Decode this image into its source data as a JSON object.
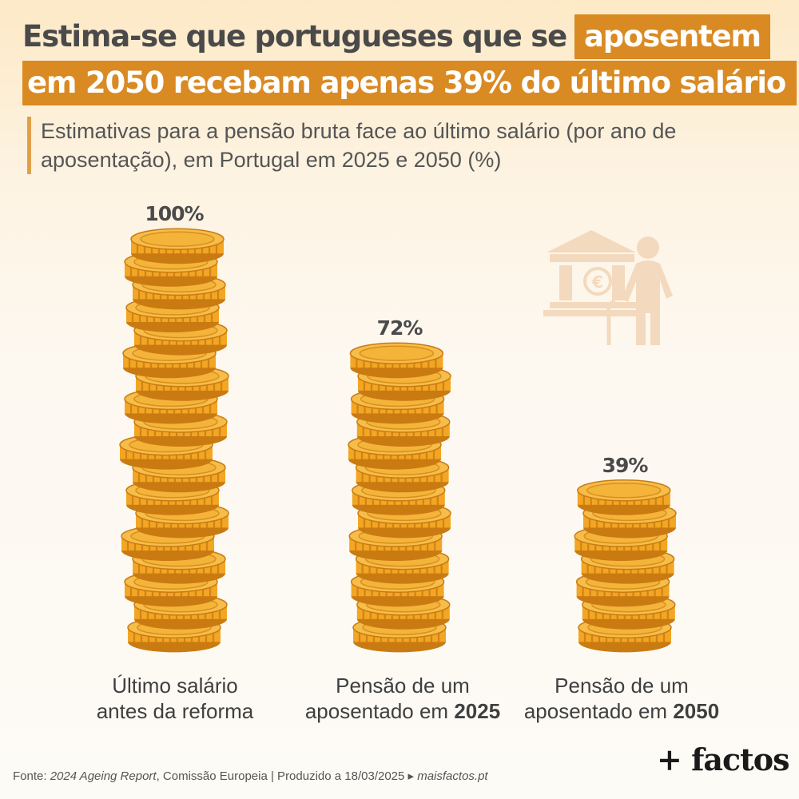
{
  "title": {
    "part1": "Estima-se que portugueses que se",
    "highlight1": "aposentem",
    "part2": "em 2050 recebam apenas 39% do último salário"
  },
  "subtitle": "Estimativas para a pensão bruta face ao último salário (por ano de aposentação), em Portugal em 2025 e 2050 (%)",
  "chart_data": {
    "type": "bar",
    "categories": [
      "Último salário antes da reforma",
      "Pensão de um aposentado em 2025",
      "Pensão de um aposentado em 2050"
    ],
    "values": [
      100,
      72,
      39
    ],
    "value_labels": [
      "100%",
      "72%",
      "39%"
    ],
    "ylim": [
      0,
      100
    ],
    "grid": false,
    "legend": "none",
    "title": "",
    "xlabel": "",
    "ylabel": "",
    "mark_style": "coin-stacks",
    "colors": {
      "coin_main": "#f2a623",
      "coin_dark": "#c97b12",
      "coin_top": "#f6bd4a",
      "accent": "#d98a22"
    }
  },
  "labels": [
    {
      "line1": "Último salário",
      "line2": "antes da reforma",
      "bold": ""
    },
    {
      "line1": "Pensão de um",
      "line2": "aposentado em ",
      "bold": "2025"
    },
    {
      "line1": "Pensão de um",
      "line2": "aposentado em ",
      "bold": "2050"
    }
  ],
  "icon": "pension-bank-elderly-icon",
  "source": {
    "prefix": "Fonte: ",
    "report": "2024 Ageing Report",
    "rest": ", Comissão Europeia  |  Produzido a 18/03/2025 ▸ ",
    "site": "maisfactos.pt"
  },
  "brand": "+ factos"
}
